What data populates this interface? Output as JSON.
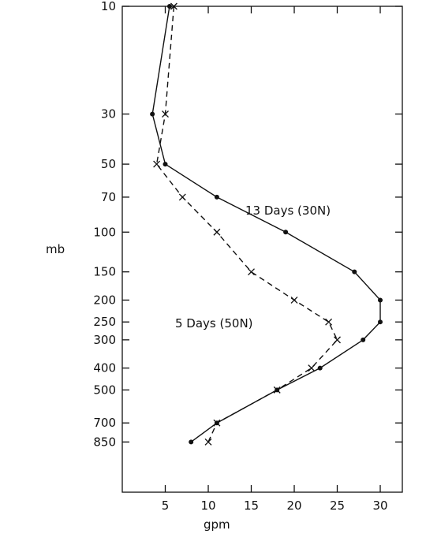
{
  "chart_data": {
    "type": "line",
    "xlabel": "gpm",
    "ylabel": "mb",
    "xlim": [
      0,
      33
    ],
    "ylim": [
      850,
      10
    ],
    "y_scale": "log",
    "x_ticks": [
      5,
      10,
      15,
      20,
      25,
      30
    ],
    "y_ticks": [
      10,
      30,
      50,
      70,
      100,
      150,
      200,
      250,
      300,
      400,
      500,
      700,
      850
    ],
    "series": [
      {
        "name": "13 Days (30N)",
        "style": "solid",
        "marker": "dot",
        "points": [
          {
            "x": 5.5,
            "y": 10
          },
          {
            "x": 3.5,
            "y": 30
          },
          {
            "x": 5,
            "y": 50
          },
          {
            "x": 11,
            "y": 70
          },
          {
            "x": 19,
            "y": 100
          },
          {
            "x": 27,
            "y": 150
          },
          {
            "x": 30,
            "y": 200
          },
          {
            "x": 30,
            "y": 250
          },
          {
            "x": 28,
            "y": 300
          },
          {
            "x": 23,
            "y": 400
          },
          {
            "x": 18,
            "y": 500
          },
          {
            "x": 11,
            "y": 700
          },
          {
            "x": 8,
            "y": 850
          }
        ]
      },
      {
        "name": "5 Days (50N)",
        "style": "dashed",
        "marker": "x",
        "points": [
          {
            "x": 6,
            "y": 10
          },
          {
            "x": 5,
            "y": 30
          },
          {
            "x": 4,
            "y": 50
          },
          {
            "x": 7,
            "y": 70
          },
          {
            "x": 11,
            "y": 100
          },
          {
            "x": 15,
            "y": 150
          },
          {
            "x": 20,
            "y": 200
          },
          {
            "x": 24,
            "y": 250
          },
          {
            "x": 25,
            "y": 300
          },
          {
            "x": 22,
            "y": 400
          },
          {
            "x": 18,
            "y": 500
          },
          {
            "x": 11,
            "y": 700
          },
          {
            "x": 10,
            "y": 850
          }
        ]
      }
    ],
    "annotations": [
      {
        "text": "13 Days (30N)",
        "series": 0
      },
      {
        "text": "5 Days (50N)",
        "series": 1
      }
    ],
    "grid": false
  }
}
